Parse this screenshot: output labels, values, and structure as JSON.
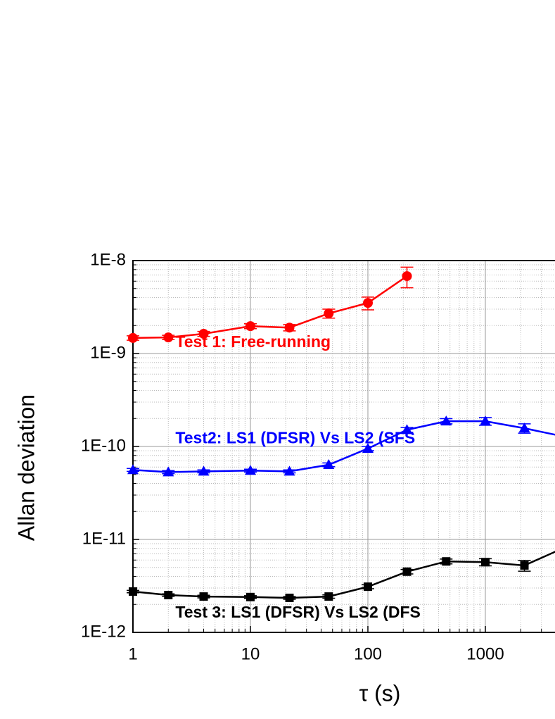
{
  "chart_data": {
    "type": "line",
    "x_label": "τ (s)",
    "y_label": "Allan deviation",
    "xlim": [
      1,
      10000
    ],
    "ylim": [
      1e-12,
      1e-08
    ],
    "log_x": true,
    "log_y": true,
    "grid": true,
    "minor_grid": true,
    "xticks": [
      1,
      10,
      100,
      1000
    ],
    "yticks": [
      {
        "value": 1e-12,
        "label": "1E-12"
      },
      {
        "value": 1e-11,
        "label": "1E-11"
      },
      {
        "value": 1e-10,
        "label": "1E-10"
      },
      {
        "value": 1e-09,
        "label": "1E-9"
      },
      {
        "value": 1e-08,
        "label": "1E-8"
      }
    ],
    "series": [
      {
        "color": "#ff0000",
        "marker": "circle",
        "x": [
          1,
          2,
          4,
          10,
          21.5,
          46.4,
          100,
          215
        ],
        "values": [
          1.47e-09,
          1.49e-09,
          1.63e-09,
          1.97e-09,
          1.9e-09,
          2.7e-09,
          3.5e-09,
          6.8e-09
        ],
        "errors": [
          8e-11,
          8e-11,
          1e-10,
          1.2e-10,
          1.5e-10,
          3e-10,
          5.5e-10,
          1.7e-09
        ]
      },
      {
        "color": "#0000ff",
        "marker": "triangle",
        "x": [
          1,
          2,
          4,
          10,
          21.5,
          46.4,
          100,
          215,
          464,
          1000,
          2150,
          4640
        ],
        "values": [
          5.6e-11,
          5.3e-11,
          5.4e-11,
          5.5e-11,
          5.4e-11,
          6.35e-11,
          9.5e-11,
          1.51e-10,
          1.87e-10,
          1.87e-10,
          1.57e-10,
          1.28e-10
        ],
        "errors": [
          2e-12,
          2e-12,
          2e-12,
          2e-12,
          2e-12,
          3e-12,
          5e-12,
          9e-12,
          1.2e-11,
          1.8e-11,
          1.8e-11,
          1.5e-11
        ]
      },
      {
        "color": "#000000",
        "marker": "square",
        "x": [
          1,
          2,
          4,
          10,
          21.5,
          46.4,
          100,
          215,
          464,
          1000,
          2150,
          4640
        ],
        "values": [
          2.75e-12,
          2.52e-12,
          2.43e-12,
          2.4e-12,
          2.35e-12,
          2.43e-12,
          3.1e-12,
          4.5e-12,
          5.8e-12,
          5.7e-12,
          5.25e-12,
          8.1e-12
        ],
        "errors": [
          8e-14,
          8e-14,
          8e-14,
          8e-14,
          8e-14,
          1e-13,
          1.5e-13,
          2.5e-13,
          3.5e-13,
          5e-13,
          7e-13,
          8e-13
        ]
      }
    ],
    "annotations": [
      {
        "text": "Test 1: Free-running",
        "color": "#ff0000",
        "x": 2.3,
        "y": 1.3e-09
      },
      {
        "text": "Test2: LS1 (DFSR) Vs LS2 (SFS",
        "color": "#0000ff",
        "x": 2.3,
        "y": 1.2e-10
      },
      {
        "text": "Test 3: LS1 (DFSR) Vs LS2 (DFS",
        "color": "#000000",
        "x": 2.3,
        "y": 1.6e-12
      }
    ]
  }
}
